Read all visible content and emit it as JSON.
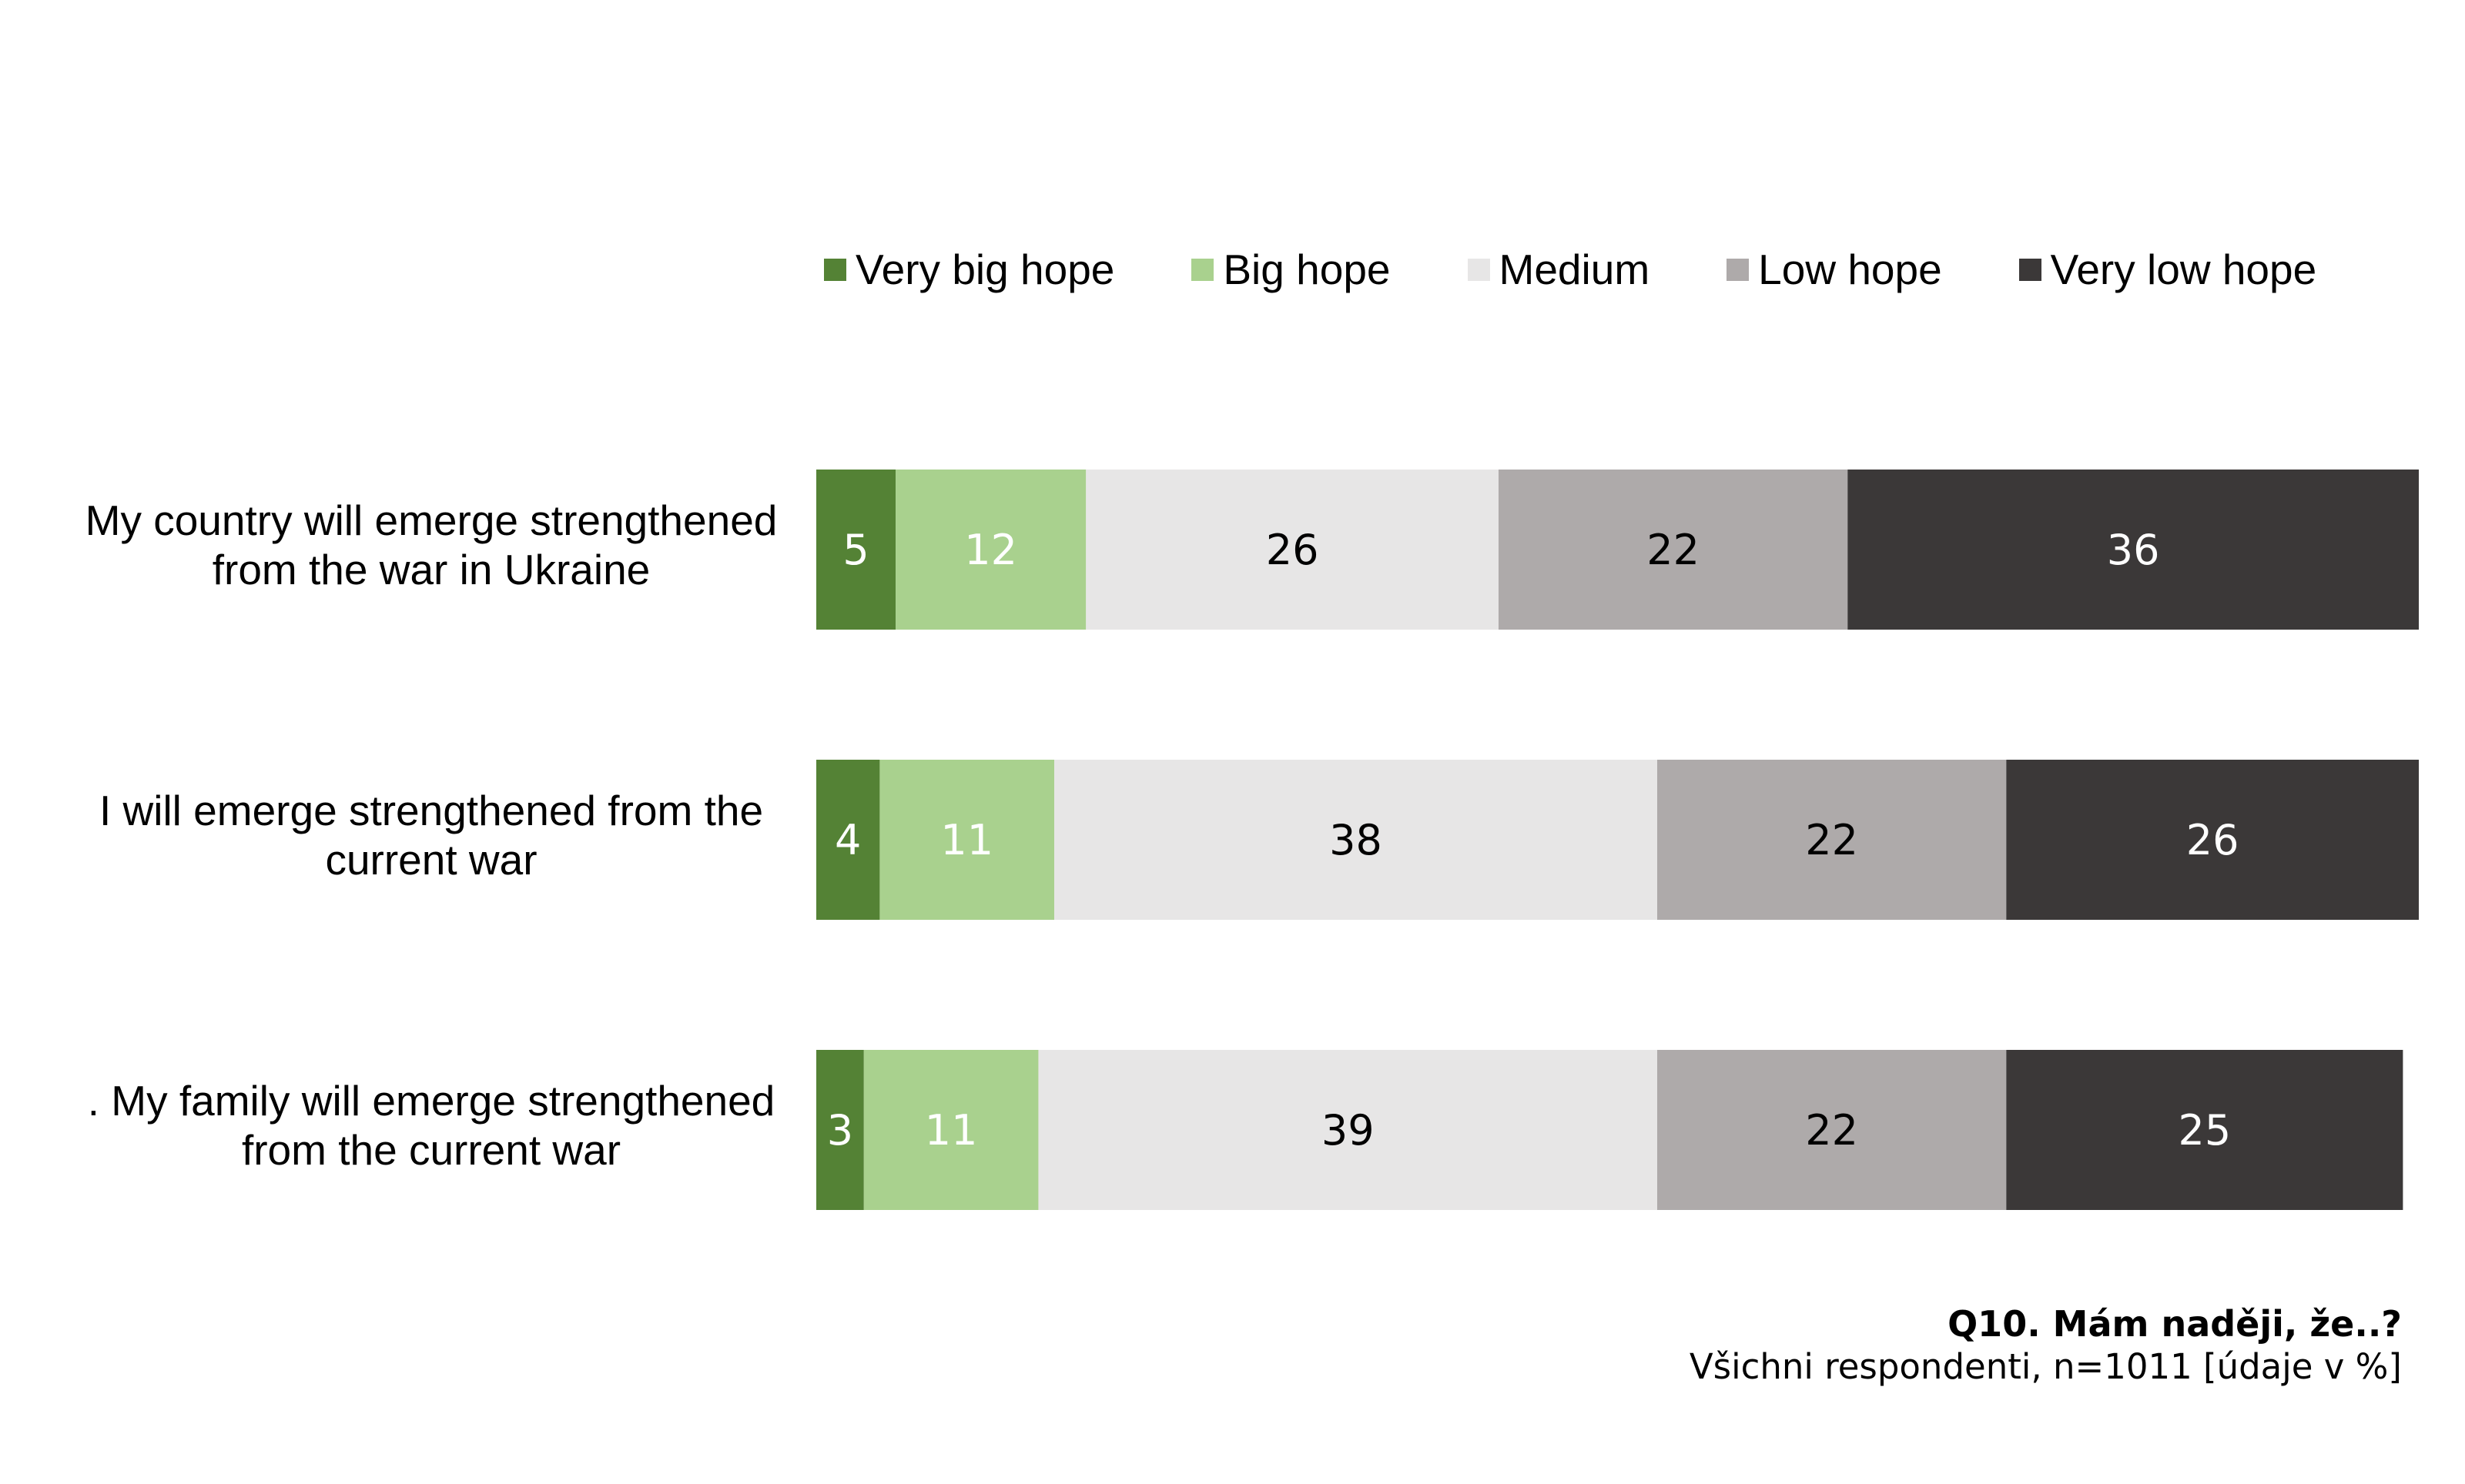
{
  "chart_data": {
    "type": "bar",
    "orientation": "horizontal",
    "stacked": true,
    "categories": [
      "My country will emerge strengthened from the war in Ukraine",
      "I will emerge strengthened from the current war",
      ". My family will emerge strengthened from the current war"
    ],
    "category_lines": [
      [
        "My country will emerge strengthened",
        "from the war in Ukraine"
      ],
      [
        "I will emerge strengthened from the",
        "current war"
      ],
      [
        ". My family will emerge strengthened",
        "from the current war"
      ]
    ],
    "series": [
      {
        "name": "Very big hope",
        "color": "#548235",
        "label_color": "#ffffff",
        "values": [
          5,
          4,
          3
        ]
      },
      {
        "name": "Big hope",
        "color": "#a9d18e",
        "label_color": "#ffffff",
        "values": [
          12,
          11,
          11
        ]
      },
      {
        "name": "Medium",
        "color": "#e7e6e6",
        "label_color": "#000000",
        "values": [
          26,
          38,
          39
        ]
      },
      {
        "name": "Low hope",
        "color": "#aeaaaa",
        "label_color": "#000000",
        "values": [
          22,
          22,
          22
        ]
      },
      {
        "name": "Very low hope",
        "color": "#3b3838",
        "label_color": "#ffffff",
        "values": [
          36,
          26,
          25
        ]
      }
    ],
    "legend_position": "top",
    "grid": false,
    "xlim": [
      0,
      101
    ]
  },
  "footnote": {
    "title": "Q10. Mám naději, že..?",
    "subtitle": "Všichni respondenti, n=1011 [údaje v %]"
  }
}
